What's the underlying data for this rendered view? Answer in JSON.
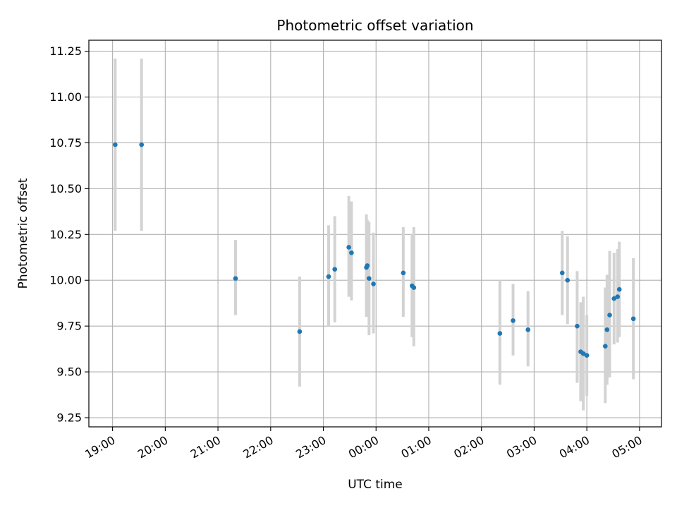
{
  "chart_data": {
    "type": "scatter",
    "title": "Photometric offset variation",
    "xlabel": "UTC time",
    "ylabel": "Photometric offset",
    "xlim": [
      "18:33",
      "05:25"
    ],
    "ylim": [
      9.2,
      11.31
    ],
    "grid": true,
    "x_ticks": [
      "19:00",
      "20:00",
      "21:00",
      "22:00",
      "23:00",
      "00:00",
      "01:00",
      "02:00",
      "03:00",
      "04:00",
      "05:00"
    ],
    "y_ticks": [
      "9.25",
      "9.50",
      "9.75",
      "10.00",
      "10.25",
      "10.50",
      "10.75",
      "11.00",
      "11.25"
    ],
    "colors": {
      "points": "#1f77b4",
      "errorbars": "#d3d3d3",
      "grid": "#b0b0b0"
    },
    "series": [
      {
        "points": [
          {
            "t": "19:03",
            "y": 10.74,
            "lo": 10.27,
            "hi": 11.21
          },
          {
            "t": "19:33",
            "y": 10.74,
            "lo": 10.27,
            "hi": 11.21
          },
          {
            "t": "21:20",
            "y": 10.01,
            "lo": 9.81,
            "hi": 10.22
          },
          {
            "t": "22:33",
            "y": 9.72,
            "lo": 9.42,
            "hi": 10.02
          },
          {
            "t": "23:06",
            "y": 10.02,
            "lo": 9.75,
            "hi": 10.3
          },
          {
            "t": "23:13",
            "y": 10.06,
            "lo": 9.77,
            "hi": 10.35
          },
          {
            "t": "23:29",
            "y": 10.18,
            "lo": 9.91,
            "hi": 10.46
          },
          {
            "t": "23:32",
            "y": 10.15,
            "lo": 9.89,
            "hi": 10.43
          },
          {
            "t": "23:49",
            "y": 10.07,
            "lo": 9.8,
            "hi": 10.36
          },
          {
            "t": "23:50",
            "y": 10.08,
            "lo": 9.84,
            "hi": 10.33
          },
          {
            "t": "23:52",
            "y": 10.01,
            "lo": 9.7,
            "hi": 10.32
          },
          {
            "t": "23:57",
            "y": 9.98,
            "lo": 9.71,
            "hi": 10.26
          },
          {
            "t": "00:31",
            "y": 10.04,
            "lo": 9.8,
            "hi": 10.29
          },
          {
            "t": "00:41",
            "y": 9.97,
            "lo": 9.69,
            "hi": 10.25
          },
          {
            "t": "00:43",
            "y": 9.96,
            "lo": 9.64,
            "hi": 10.29
          },
          {
            "t": "02:21",
            "y": 9.71,
            "lo": 9.43,
            "hi": 10.0
          },
          {
            "t": "02:36",
            "y": 9.78,
            "lo": 9.59,
            "hi": 9.98
          },
          {
            "t": "02:53",
            "y": 9.73,
            "lo": 9.53,
            "hi": 9.94
          },
          {
            "t": "03:32",
            "y": 10.04,
            "lo": 9.81,
            "hi": 10.27
          },
          {
            "t": "03:38",
            "y": 10.0,
            "lo": 9.76,
            "hi": 10.24
          },
          {
            "t": "03:49",
            "y": 9.75,
            "lo": 9.44,
            "hi": 10.05
          },
          {
            "t": "03:53",
            "y": 9.61,
            "lo": 9.34,
            "hi": 9.88
          },
          {
            "t": "03:56",
            "y": 9.6,
            "lo": 9.29,
            "hi": 9.91
          },
          {
            "t": "04:00",
            "y": 9.59,
            "lo": 9.37,
            "hi": 9.81
          },
          {
            "t": "04:21",
            "y": 9.64,
            "lo": 9.33,
            "hi": 9.96
          },
          {
            "t": "04:23",
            "y": 9.73,
            "lo": 9.43,
            "hi": 10.03
          },
          {
            "t": "04:26",
            "y": 9.81,
            "lo": 9.47,
            "hi": 10.16
          },
          {
            "t": "04:31",
            "y": 9.9,
            "lo": 9.65,
            "hi": 10.15
          },
          {
            "t": "04:35",
            "y": 9.91,
            "lo": 9.66,
            "hi": 10.17
          },
          {
            "t": "04:37",
            "y": 9.95,
            "lo": 9.69,
            "hi": 10.21
          },
          {
            "t": "04:53",
            "y": 9.79,
            "lo": 9.46,
            "hi": 10.12
          }
        ]
      }
    ]
  }
}
